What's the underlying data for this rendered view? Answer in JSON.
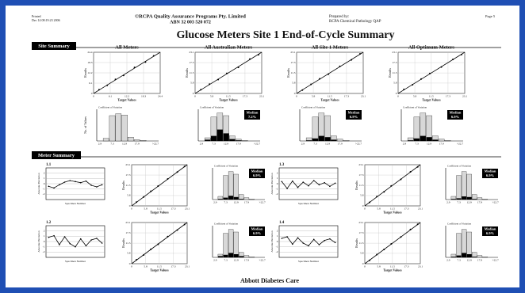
{
  "header": {
    "printed": "Printed",
    "printed_date": "Dec 14 08:19:23 2006",
    "org": "©RCPA Quality Assurance Programs Pty. Limited",
    "abn": "ABN 32 003 520 072",
    "prepared_by": "Prepared by:",
    "preparer": "RCPA Chemical Pathology QAP",
    "page": "Page 5"
  },
  "title": "Glucose Meters Site 1 End-of-Cycle Summary",
  "labels": {
    "results": "Results",
    "target": "Target Values",
    "count": "No. of Values",
    "cv": "Coefficient of Variation",
    "specimen": "Specimen Number",
    "deviation": "Absolute Deviation",
    "median": "Median"
  },
  "hist_ticks": [
    "2.9",
    "7.3",
    "12.9",
    "17.9",
    ">22.7"
  ],
  "site_summary": {
    "heading": "Site Summary",
    "panels": [
      {
        "title": "All Meters",
        "lim": [
          0,
          24.4
        ],
        "xticks": [
          0,
          6.1,
          12.2,
          18.3,
          24.4
        ],
        "x": [
          2,
          5,
          8,
          11,
          15,
          19,
          22
        ],
        "y": [
          2.2,
          4.8,
          8.3,
          10.7,
          15.4,
          18.6,
          22.3
        ],
        "hist_ylim": [
          0,
          50
        ],
        "all": [
          0,
          4,
          40,
          43,
          41,
          6,
          2,
          1,
          0,
          0
        ]
      },
      {
        "title": "All Australian Meters",
        "lim": [
          0,
          23.1
        ],
        "xticks": [
          0,
          5.8,
          11.5,
          17.3,
          23.1
        ],
        "x": [
          2,
          5,
          8,
          11,
          15,
          19,
          22
        ],
        "y": [
          2.1,
          5.2,
          7.8,
          11.3,
          14.6,
          19.3,
          21.7
        ],
        "hist_ylim": [
          0,
          50
        ],
        "all": [
          0,
          5,
          38,
          44,
          40,
          8,
          3,
          1,
          0,
          0
        ],
        "site": [
          0,
          2,
          8,
          18,
          12,
          3,
          1,
          0,
          0,
          0
        ],
        "median": "7.2%"
      },
      {
        "title": "All Site 1 Meters",
        "lim": [
          0,
          23.1
        ],
        "xticks": [
          0,
          5.8,
          11.5,
          17.3,
          23.1
        ],
        "x": [
          2,
          5,
          8,
          11,
          15,
          19,
          22
        ],
        "y": [
          1.9,
          5.1,
          8.2,
          10.8,
          15.2,
          18.8,
          22.2
        ],
        "hist_ylim": [
          0,
          50
        ],
        "all": [
          0,
          5,
          38,
          44,
          40,
          8,
          3,
          1,
          0,
          0
        ],
        "site": [
          0,
          1,
          4,
          8,
          6,
          2,
          0,
          0,
          0,
          0
        ],
        "median": "6.9%"
      },
      {
        "title": "All Optimum Meters",
        "lim": [
          0,
          23.1
        ],
        "xticks": [
          0,
          5.8,
          11.5,
          17.3,
          23.1
        ],
        "x": [
          2,
          5,
          8,
          11,
          15,
          19,
          22
        ],
        "y": [
          2.3,
          4.9,
          8.1,
          11.2,
          14.8,
          19.1,
          21.8
        ],
        "hist_ylim": [
          0,
          50
        ],
        "all": [
          0,
          5,
          38,
          44,
          40,
          8,
          3,
          1,
          0,
          0
        ],
        "site": [
          0,
          1,
          4,
          8,
          6,
          2,
          0,
          0,
          0,
          0
        ],
        "median": "6.9%"
      }
    ]
  },
  "meter_summary": {
    "heading": "Meter Summary",
    "panels": [
      {
        "id": "1.1",
        "dev_ylim": [
          -3,
          3
        ],
        "dev_yticks": [
          -2,
          -1,
          0,
          1,
          2
        ],
        "deviation": [
          -0.5,
          -0.8,
          -0.2,
          0.3,
          0.6,
          0.4,
          0.2,
          0.5,
          -0.3,
          -0.6,
          -0.2
        ],
        "lim": [
          0,
          23.1
        ],
        "xticks": [
          0,
          5.8,
          11.5,
          17.3,
          23.1
        ],
        "x": [
          2,
          5,
          8,
          11,
          15,
          19,
          22
        ],
        "y": [
          2.1,
          5.0,
          8.2,
          11.1,
          15.1,
          19.0,
          22.1
        ],
        "hist_ylim": [
          0,
          50
        ],
        "all": [
          0,
          5,
          38,
          44,
          40,
          8,
          3,
          1,
          0,
          0
        ],
        "site": [
          0,
          1,
          3,
          6,
          4,
          1,
          0,
          0,
          0,
          0
        ],
        "median": "6.9%"
      },
      {
        "id": "1.3",
        "dev_ylim": [
          -3,
          3
        ],
        "dev_yticks": [
          -2,
          -1,
          0,
          1,
          2
        ],
        "deviation": [
          0.4,
          -0.9,
          0.5,
          -0.7,
          0.3,
          -0.4,
          0.6,
          -0.2,
          0.2,
          -0.5,
          0.1
        ],
        "lim": [
          0,
          23.1
        ],
        "xticks": [
          0,
          5.8,
          11.5,
          17.3,
          23.1
        ],
        "x": [
          2,
          5,
          8,
          11,
          15,
          19,
          22
        ],
        "y": [
          2.0,
          5.2,
          7.9,
          11.2,
          14.9,
          19.1,
          21.9
        ],
        "hist_ylim": [
          0,
          50
        ],
        "all": [
          0,
          5,
          38,
          44,
          40,
          8,
          3,
          1,
          0,
          0
        ],
        "site": [
          0,
          1,
          2,
          5,
          4,
          1,
          0,
          0,
          0,
          0
        ],
        "median": "6.9%"
      },
      {
        "id": "1.2",
        "dev_ylim": [
          -3,
          3
        ],
        "dev_yticks": [
          -2,
          -1,
          0,
          1,
          2
        ],
        "deviation": [
          0.8,
          1.1,
          -0.6,
          0.9,
          -0.4,
          -1.0,
          0.5,
          -0.8,
          0.3,
          0.6,
          -0.3
        ],
        "lim": [
          0,
          23.1
        ],
        "xticks": [
          0,
          5.8,
          11.5,
          17.3,
          23.1
        ],
        "x": [
          2,
          5,
          8,
          11,
          15,
          19,
          22
        ],
        "y": [
          2.2,
          4.9,
          8.1,
          10.9,
          15.2,
          18.9,
          22.0
        ],
        "hist_ylim": [
          0,
          50
        ],
        "all": [
          0,
          5,
          38,
          44,
          40,
          8,
          3,
          1,
          0,
          0
        ],
        "site": [
          0,
          2,
          4,
          7,
          5,
          2,
          0,
          0,
          0,
          0
        ],
        "median": "6.9%"
      },
      {
        "id": "1.4",
        "dev_ylim": [
          -3,
          3
        ],
        "dev_yticks": [
          -2,
          -1,
          0,
          1,
          2
        ],
        "deviation": [
          0.6,
          0.9,
          -0.5,
          0.7,
          -0.3,
          -0.8,
          0.4,
          -0.6,
          0.2,
          0.5,
          -0.2
        ],
        "lim": [
          0,
          23.1
        ],
        "xticks": [
          0,
          5.8,
          11.5,
          17.3,
          23.1
        ],
        "x": [
          2,
          5,
          8,
          11,
          15,
          19,
          22
        ],
        "y": [
          1.9,
          5.1,
          8.0,
          11.1,
          15.0,
          19.2,
          22.1
        ],
        "hist_ylim": [
          0,
          50
        ],
        "all": [
          0,
          5,
          38,
          44,
          40,
          8,
          3,
          1,
          0,
          0
        ],
        "site": [
          0,
          1,
          3,
          7,
          5,
          1,
          0,
          0,
          0,
          0
        ],
        "median": "6.9%"
      }
    ]
  },
  "footer": "Abbott Diabetes Care"
}
